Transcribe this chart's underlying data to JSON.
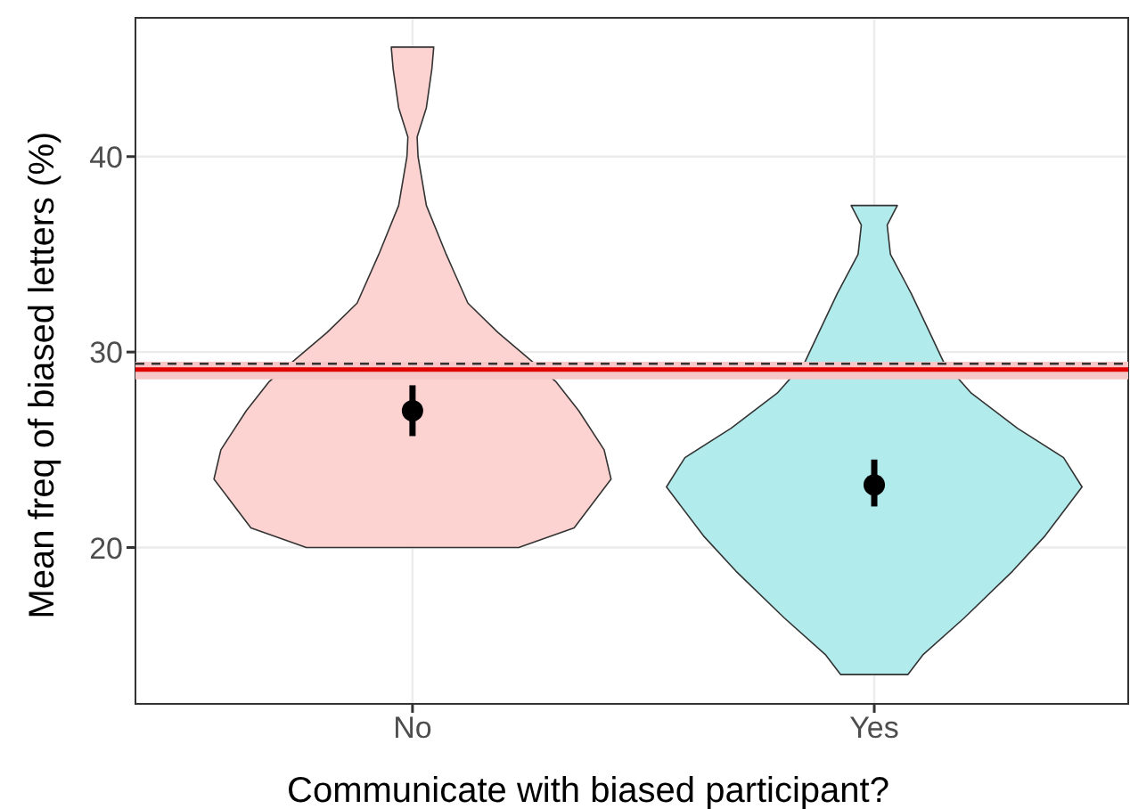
{
  "chart_data": {
    "type": "scatter",
    "xlabel": "Communicate with biased participant?",
    "ylabel": "Mean freq of biased letters (%)",
    "categories": [
      "No",
      "Yes"
    ],
    "ylim": [
      12,
      47.1
    ],
    "yticks": [
      20,
      30,
      40
    ],
    "grid": true,
    "legend": false,
    "series": [
      {
        "color": "#000000",
        "values": [
          27.0,
          23.2
        ],
        "errors": [
          [
            25.7,
            28.3
          ],
          [
            22.1,
            24.5
          ]
        ]
      }
    ],
    "ref_lines": [
      {
        "axis": "y",
        "value": 29.4,
        "color": "#333333",
        "line_style": "dashed"
      },
      {
        "axis": "y",
        "value": 29.1,
        "color": "#e00000",
        "line_style": "solid"
      }
    ],
    "bands": [
      {
        "axis": "y",
        "from": 28.6,
        "to": 29.5,
        "color": "#f7c6c6"
      }
    ]
  }
}
